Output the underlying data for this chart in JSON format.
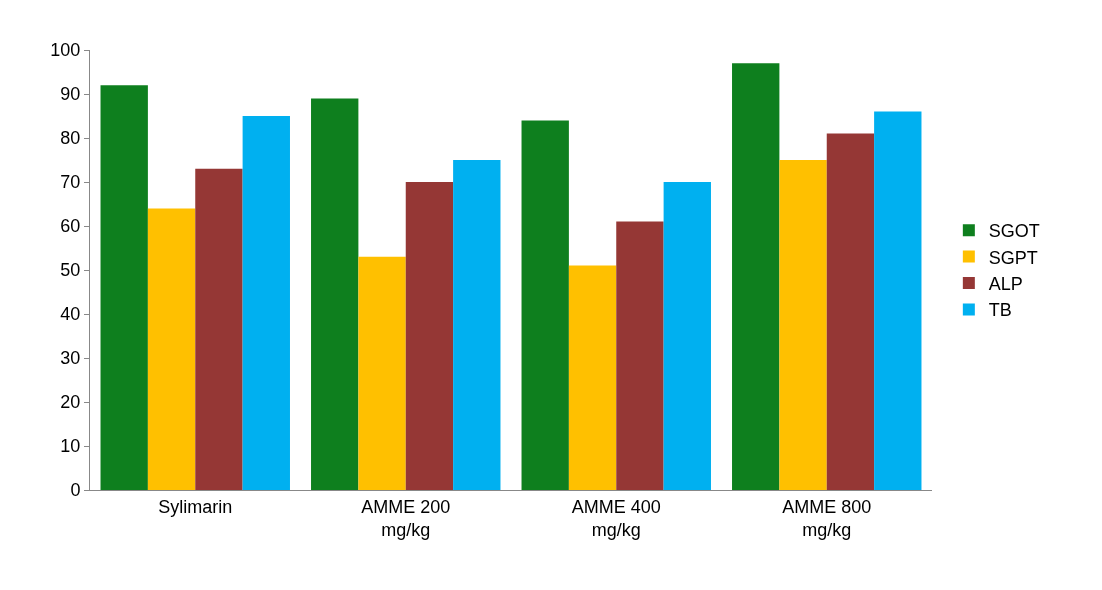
{
  "chart_data": {
    "type": "bar",
    "categories": [
      "Sylimarin",
      "AMME 200 mg/kg",
      "AMME 400 mg/kg",
      "AMME 800 mg/kg"
    ],
    "series": [
      {
        "name": "SGOT",
        "color": "#0e7f1e",
        "values": [
          92,
          89,
          84,
          97
        ]
      },
      {
        "name": "SGPT",
        "color": "#ffc000",
        "values": [
          64,
          53,
          51,
          75
        ]
      },
      {
        "name": "ALP",
        "color": "#953735",
        "values": [
          73,
          70,
          61,
          81
        ]
      },
      {
        "name": "TB",
        "color": "#00b0f0",
        "values": [
          85,
          75,
          70,
          86
        ]
      }
    ],
    "ylim": [
      0,
      100
    ],
    "yticks": [
      0,
      10,
      20,
      30,
      40,
      50,
      60,
      70,
      80,
      90,
      100
    ],
    "legend": "right"
  }
}
